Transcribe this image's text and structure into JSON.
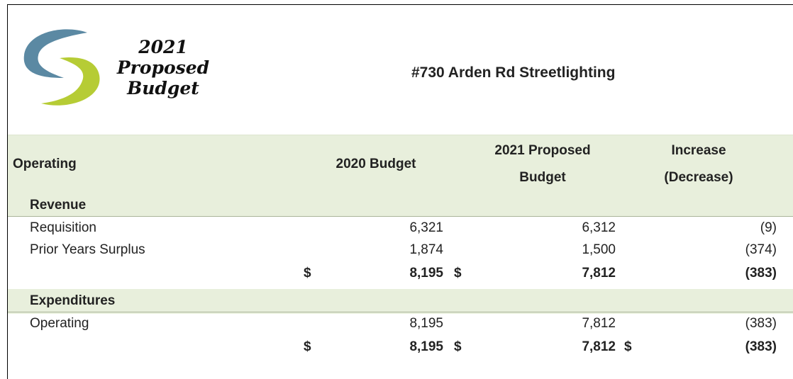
{
  "header": {
    "logo_lines": [
      "2021",
      "Proposed",
      "Budget"
    ],
    "title": "#730 Arden Rd Streetlighting"
  },
  "table": {
    "columns": [
      [
        "Operating"
      ],
      [
        "2020 Budget"
      ],
      [
        "2021 Proposed",
        "Budget"
      ],
      [
        "Increase",
        "(Decrease)"
      ]
    ],
    "sections": [
      {
        "name": "Revenue",
        "rows": [
          {
            "label": "Requisition",
            "cells": [
              "6,321",
              "6,312",
              "(9)"
            ]
          },
          {
            "label": "Prior Years Surplus",
            "cells": [
              "1,874",
              "1,500",
              "(374)"
            ]
          }
        ],
        "total": [
          {
            "symbol": "$",
            "value": "8,195"
          },
          {
            "symbol": "$",
            "value": "7,812"
          },
          {
            "value": "(383)"
          }
        ]
      },
      {
        "name": "Expenditures",
        "rows": [
          {
            "label": "Operating",
            "cells": [
              "8,195",
              "7,812",
              "(383)"
            ]
          }
        ],
        "total": [
          {
            "symbol": "$",
            "value": "8,195"
          },
          {
            "symbol": "$",
            "value": "7,812"
          },
          {
            "symbol": "$",
            "value": "(383)"
          }
        ]
      }
    ]
  }
}
